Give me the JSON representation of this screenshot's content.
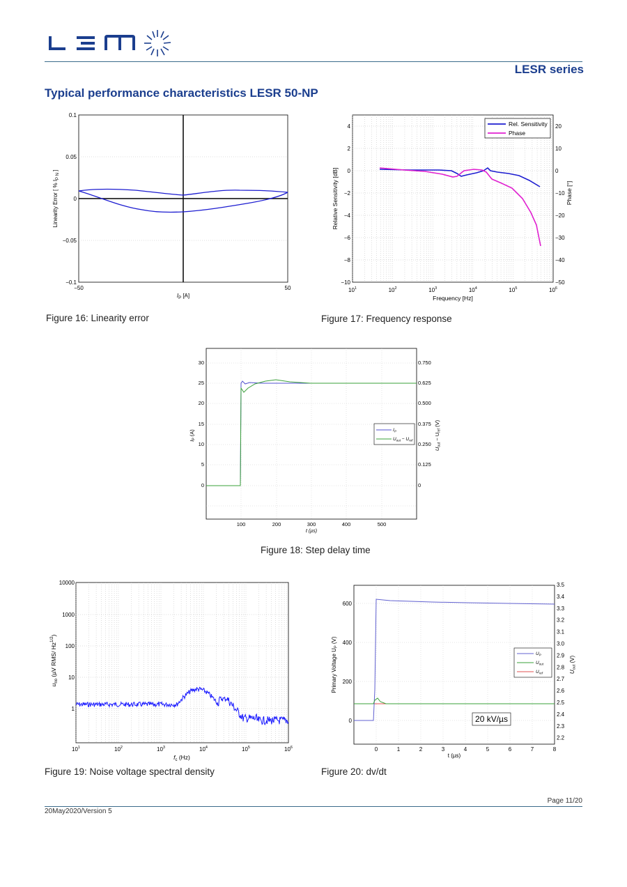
{
  "header": {
    "logo_text": "LEM",
    "series": "LESR series",
    "page_title": "Typical performance characteristics LESR 50-NP"
  },
  "fig16": {
    "caption": "Figure 16: Linearity error",
    "ylabel": "Linearity Error [ % I",
    "ylabel_sub": "P N",
    "ylabel_end": " ]",
    "xlabel": "I",
    "xlabel_sub": "P",
    "xlabel_end": " [A]",
    "xticks": [
      "−50",
      "50"
    ],
    "yticks": [
      "0.1",
      "0.05",
      "0",
      "−0.05",
      "−0.1"
    ]
  },
  "fig17": {
    "caption": "Figure 17: Frequency response",
    "ylabel_left": "Relative Sensitivity [dB]",
    "ylabel_right": "Phase [°]",
    "xlabel": "Frequency [Hz]",
    "yticks_left": [
      "4",
      "2",
      "0",
      "−2",
      "−4",
      "−6",
      "−8",
      "−10"
    ],
    "yticks_right": [
      "20",
      "10",
      "0",
      "−10",
      "−20",
      "−30",
      "−40",
      "−50"
    ],
    "xtick_base": "10",
    "xtick_exps": [
      "1",
      "2",
      "3",
      "4",
      "5",
      "6"
    ],
    "legend": [
      "Rel. Sensitivity",
      "Phase"
    ]
  },
  "fig18": {
    "caption": "Figure 18: Step delay time",
    "ylabel_left": "I",
    "ylabel_left_sub": "P",
    "ylabel_left_end": " (A)",
    "ylabel_right": "U",
    "ylabel_right_sub1": "out",
    "ylabel_right_mid": " − U",
    "ylabel_right_sub2": "ref",
    "ylabel_right_end": " (V)",
    "xlabel": "t (µs)",
    "yticks_left": [
      "30",
      "25",
      "20",
      "15",
      "10",
      "5",
      "0"
    ],
    "yticks_right": [
      "0.750",
      "0.625",
      "0.500",
      "0.375",
      "0.250",
      "0.125",
      "0"
    ],
    "xticks": [
      "100",
      "200",
      "300",
      "400",
      "500"
    ],
    "legend_1": "I",
    "legend_1_sub": "P",
    "legend_2": "U",
    "legend_2_sub1": "out",
    "legend_2_mid": " − U",
    "legend_2_sub2": "ref"
  },
  "fig19": {
    "caption": "Figure 19: Noise voltage spectral density",
    "ylabel_main": "u",
    "ylabel_sub": "no",
    "ylabel_rest": " (µV RMS/ Hz",
    "ylabel_sup": "1/2",
    "ylabel_end": ")",
    "xlabel_main": "f",
    "xlabel_sub": "c",
    "xlabel_end": " (Hz)",
    "yticks": [
      "10000",
      "1000",
      "100",
      "10",
      "1"
    ],
    "xtick_base": "10",
    "xtick_exps": [
      "1",
      "2",
      "3",
      "4",
      "5",
      "6"
    ]
  },
  "fig20": {
    "caption": "Figure 20: dv/dt",
    "ylabel_left": "Primary Voltage U",
    "ylabel_left_sub": "P",
    "ylabel_left_end": " (V)",
    "ylabel_right": "U",
    "ylabel_right_sub": "out",
    "ylabel_right_end": " (V)",
    "xlabel": "t (µs)",
    "yticks_left": [
      "600",
      "400",
      "200",
      "0"
    ],
    "yticks_right": [
      "3.5",
      "3.4",
      "3.3",
      "3.2",
      "3.1",
      "3.0",
      "2.9",
      "2.8",
      "2.7",
      "2.6",
      "2.5",
      "2.4",
      "2.3",
      "2.2"
    ],
    "xticks": [
      "0",
      "1",
      "2",
      "3",
      "4",
      "5",
      "6",
      "7",
      "8"
    ],
    "legend": [
      "U",
      "U",
      "U"
    ],
    "legend_subs": [
      "P",
      "out",
      "ref"
    ],
    "annotation": "20 kV/µs"
  },
  "footer": {
    "page": "Page 11/20",
    "version": "20May2020/Version 5"
  },
  "colors": {
    "brand_blue": "#1b3e8e",
    "curve_blue": "#1c1cd0",
    "phase_magenta": "#e020d0",
    "noise_blue": "#1a1aff",
    "green": "#3aa03a",
    "red": "#e05050"
  }
}
